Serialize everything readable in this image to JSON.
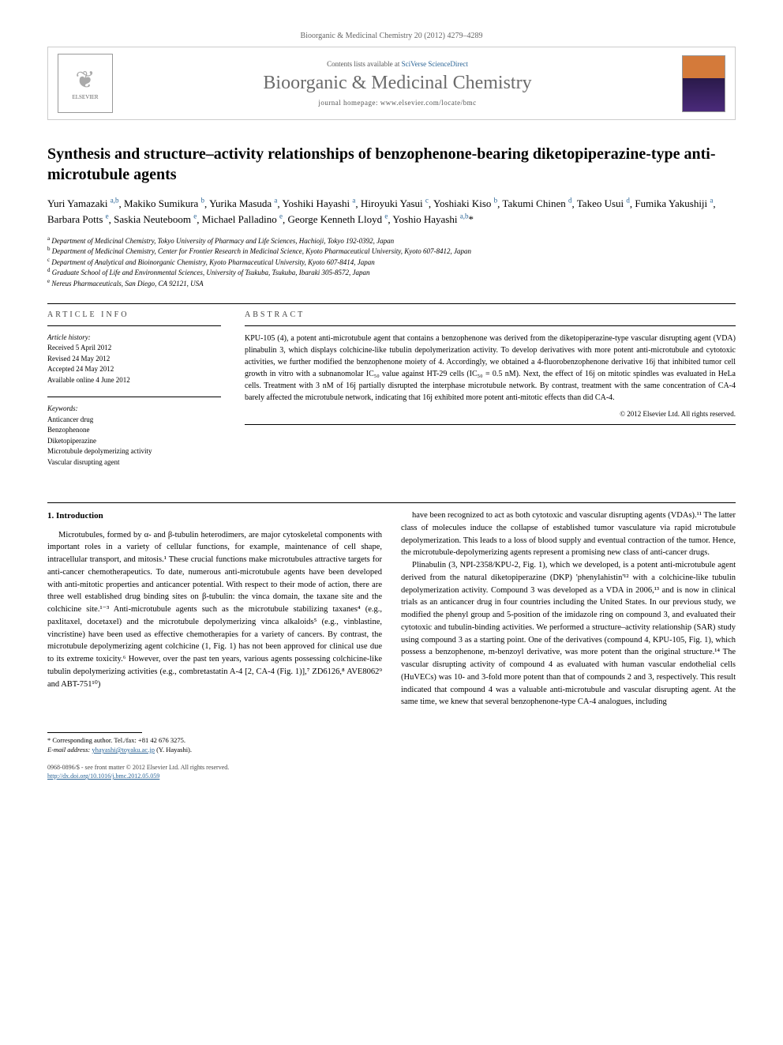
{
  "journal_ref": "Bioorganic & Medicinal Chemistry 20 (2012) 4279–4289",
  "header": {
    "contents_prefix": "Contents lists available at ",
    "contents_link": "SciVerse ScienceDirect",
    "journal_name": "Bioorganic & Medicinal Chemistry",
    "homepage_prefix": "journal homepage: ",
    "homepage_url": "www.elsevier.com/locate/bmc",
    "publisher": "ELSEVIER"
  },
  "title": "Synthesis and structure–activity relationships of benzophenone-bearing diketopiperazine-type anti-microtubule agents",
  "authors": [
    {
      "name": "Yuri Yamazaki",
      "aff": "a,b"
    },
    {
      "name": "Makiko Sumikura",
      "aff": "b"
    },
    {
      "name": "Yurika Masuda",
      "aff": "a"
    },
    {
      "name": "Yoshiki Hayashi",
      "aff": "a"
    },
    {
      "name": "Hiroyuki Yasui",
      "aff": "c"
    },
    {
      "name": "Yoshiaki Kiso",
      "aff": "b"
    },
    {
      "name": "Takumi Chinen",
      "aff": "d"
    },
    {
      "name": "Takeo Usui",
      "aff": "d"
    },
    {
      "name": "Fumika Yakushiji",
      "aff": "a"
    },
    {
      "name": "Barbara Potts",
      "aff": "e"
    },
    {
      "name": "Saskia Neuteboom",
      "aff": "e"
    },
    {
      "name": "Michael Palladino",
      "aff": "e"
    },
    {
      "name": "George Kenneth Lloyd",
      "aff": "e"
    },
    {
      "name": "Yoshio Hayashi",
      "aff": "a,b,*"
    }
  ],
  "affiliations": [
    {
      "key": "a",
      "text": "Department of Medicinal Chemistry, Tokyo University of Pharmacy and Life Sciences, Hachioji, Tokyo 192-0392, Japan"
    },
    {
      "key": "b",
      "text": "Department of Medicinal Chemistry, Center for Frontier Research in Medicinal Science, Kyoto Pharmaceutical University, Kyoto 607-8412, Japan"
    },
    {
      "key": "c",
      "text": "Department of Analytical and Bioinorganic Chemistry, Kyoto Pharmaceutical University, Kyoto 607-8414, Japan"
    },
    {
      "key": "d",
      "text": "Graduate School of Life and Environmental Sciences, University of Tsukuba, Tsukuba, Ibaraki 305-8572, Japan"
    },
    {
      "key": "e",
      "text": "Nereus Pharmaceuticals, San Diego, CA 92121, USA"
    }
  ],
  "article_info": {
    "header": "ARTICLE INFO",
    "history_label": "Article history:",
    "history": [
      "Received 5 April 2012",
      "Revised 24 May 2012",
      "Accepted 24 May 2012",
      "Available online 4 June 2012"
    ],
    "keywords_label": "Keywords:",
    "keywords": [
      "Anticancer drug",
      "Benzophenone",
      "Diketopiperazine",
      "Microtubule depolymerizing activity",
      "Vascular disrupting agent"
    ]
  },
  "abstract": {
    "header": "ABSTRACT",
    "text": "KPU-105 (4), a potent anti-microtubule agent that contains a benzophenone was derived from the diketopiperazine-type vascular disrupting agent (VDA) plinabulin 3, which displays colchicine-like tubulin depolymerization activity. To develop derivatives with more potent anti-microtubule and cytotoxic activities, we further modified the benzophenone moiety of 4. Accordingly, we obtained a 4-fluorobenzophenone derivative 16j that inhibited tumor cell growth in vitro with a subnanomolar IC₅₀ value against HT-29 cells (IC₅₀ = 0.5 nM). Next, the effect of 16j on mitotic spindles was evaluated in HeLa cells. Treatment with 3 nM of 16j partially disrupted the interphase microtubule network. By contrast, treatment with the same concentration of CA-4 barely affected the microtubule network, indicating that 16j exhibited more potent anti-mitotic effects than did CA-4.",
    "copyright": "© 2012 Elsevier Ltd. All rights reserved."
  },
  "body": {
    "section_heading": "1. Introduction",
    "col1_p1": "Microtubules, formed by α- and β-tubulin heterodimers, are major cytoskeletal components with important roles in a variety of cellular functions, for example, maintenance of cell shape, intracellular transport, and mitosis.¹ These crucial functions make microtubules attractive targets for anti-cancer chemotherapeutics. To date, numerous anti-microtubule agents have been developed with anti-mitotic properties and anticancer potential. With respect to their mode of action, there are three well established drug binding sites on β-tubulin: the vinca domain, the taxane site and the colchicine site.¹⁻³ Anti-microtubule agents such as the microtubule stabilizing taxanes⁴ (e.g., paxlitaxel, docetaxel) and the microtubule depolymerizing vinca alkaloids⁵ (e.g., vinblastine, vincristine) have been used as effective chemotherapies for a variety of cancers. By contrast, the microtubule depolymerizing agent colchicine (1, Fig. 1) has not been approved for clinical use due to its extreme toxicity.⁶ However, over the past ten years, various agents possessing colchicine-like tubulin depolymerizing activities (e.g., combretastatin A-4 [2, CA-4 (Fig. 1)],⁷ ZD6126,⁸ AVE8062⁹ and ABT-751¹⁰)",
    "col2_p1": "have been recognized to act as both cytotoxic and vascular disrupting agents (VDAs).¹¹ The latter class of molecules induce the collapse of established tumor vasculature via rapid microtubule depolymerization. This leads to a loss of blood supply and eventual contraction of the tumor. Hence, the microtubule-depolymerizing agents represent a promising new class of anti-cancer drugs.",
    "col2_p2": "Plinabulin (3, NPI-2358/KPU-2, Fig. 1), which we developed, is a potent anti-microtubule agent derived from the natural diketopiperazine (DKP) 'phenylahistin'¹² with a colchicine-like tubulin depolymerization activity. Compound 3 was developed as a VDA in 2006,¹³ and is now in clinical trials as an anticancer drug in four countries including the United States. In our previous study, we modified the phenyl group and 5-position of the imidazole ring on compound 3, and evaluated their cytotoxic and tubulin-binding activities. We performed a structure–activity relationship (SAR) study using compound 3 as a starting point. One of the derivatives (compound 4, KPU-105, Fig. 1), which possess a benzophenone, m-benzoyl derivative, was more potent than the original structure.¹⁴ The vascular disrupting activity of compound 4 as evaluated with human vascular endothelial cells (HuVECs) was 10- and 3-fold more potent than that of compounds 2 and 3, respectively. This result indicated that compound 4 was a valuable anti-microtubule and vascular disrupting agent. At the same time, we knew that several benzophenone-type CA-4 analogues, including"
  },
  "footer": {
    "corresponding": "* Corresponding author. Tel./fax: +81 42 676 3275.",
    "email_label": "E-mail address:",
    "email": "yhayashi@toyaku.ac.jp",
    "email_person": "(Y. Hayashi).",
    "copyright_line": "0968-0896/$ - see front matter © 2012 Elsevier Ltd. All rights reserved.",
    "doi": "http://dx.doi.org/10.1016/j.bmc.2012.05.059"
  },
  "colors": {
    "link": "#2a6496",
    "text": "#000000",
    "muted": "#666666",
    "journal_name": "#6b6b6b"
  }
}
